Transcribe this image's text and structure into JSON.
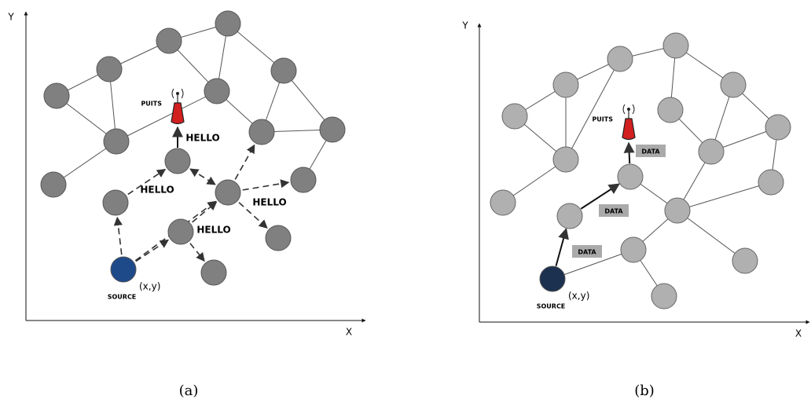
{
  "panels": [
    {
      "caption": "(a)",
      "y_axis": "Y",
      "x_axis": "X",
      "sink": "PUITS",
      "source": "SOURCE",
      "source_position": "(x,y)",
      "messages": [
        "HELLO",
        "HELLO",
        "HELLO",
        "HELLO"
      ]
    },
    {
      "caption": "(b)",
      "y_axis": "Y",
      "x_axis": "X",
      "sink": "PUITS",
      "source": "SOURCE",
      "source_position": "(x,y)",
      "messages": [
        "DATA",
        "DATA",
        "DATA"
      ]
    }
  ]
}
